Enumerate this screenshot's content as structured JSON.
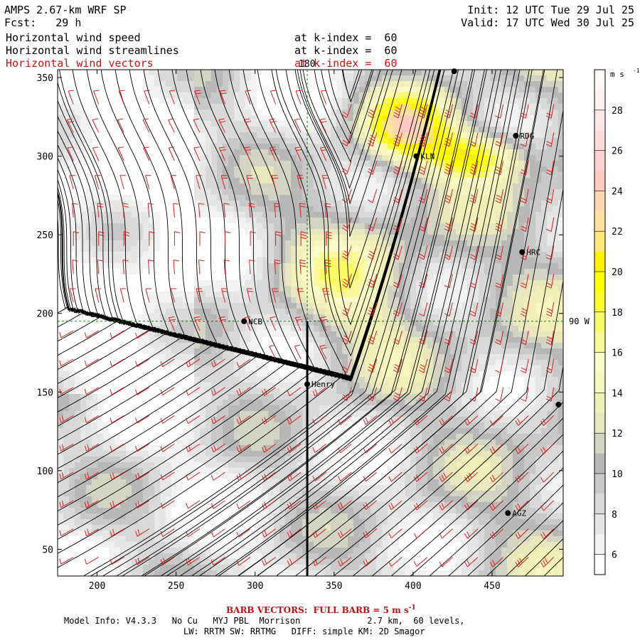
{
  "header": {
    "model": "AMPS 2.67-km WRF SP",
    "fcst_label": "Fcst:",
    "fcst_value": "29 h",
    "init": "Init: 12 UTC Tue 29 Jul 25",
    "valid": "Valid: 17 UTC Wed 30 Jul 25",
    "fields": [
      {
        "name": "Horizontal wind speed",
        "level": "at k-index =  60",
        "color": "#000000"
      },
      {
        "name": "Horizontal wind streamlines",
        "level": "at k-index =  60",
        "color": "#000000"
      },
      {
        "name": "Horizontal wind vectors",
        "level": "at k-index =  60",
        "color": "#d01010"
      }
    ]
  },
  "footer": {
    "barb_note": "BARB VECTORS:  FULL BARB = 5 m s",
    "barb_sup": "-1",
    "model_info_1": "Model Info: V4.3.3   No Cu   MYJ PBL  Morrison             2.7 km,  60 levels,",
    "model_info_2": "LW: RRTM SW: RRTMG   DIFF: simple KM: 2D Smagor"
  },
  "chart_data": {
    "type": "heatmap",
    "title": "Horizontal wind speed",
    "xlim": [
      175,
      495
    ],
    "ylim": [
      33,
      355
    ],
    "x_ticks": [
      200,
      250,
      300,
      350,
      400,
      450
    ],
    "y_ticks": [
      50,
      100,
      150,
      200,
      250,
      300,
      350
    ],
    "gridlines": [
      {
        "axis": "x",
        "value": 333,
        "label": "180"
      },
      {
        "axis": "y",
        "value": 195,
        "label": "90 W"
      }
    ],
    "cross_section": {
      "x": 333,
      "y": [
        33,
        195
      ]
    },
    "stations": [
      {
        "label": "NCB",
        "x": 293,
        "y": 195
      },
      {
        "label": "Henry",
        "x": 333,
        "y": 155
      },
      {
        "label": "KLN",
        "x": 402,
        "y": 300
      },
      {
        "label": "RDG",
        "x": 465,
        "y": 313
      },
      {
        "label": "HRC",
        "x": 469,
        "y": 239
      },
      {
        "label": "AGZ",
        "x": 460,
        "y": 73
      },
      {
        "label": "",
        "x": 426,
        "y": 354
      },
      {
        "label": "",
        "x": 492,
        "y": 142
      }
    ],
    "colorbar": {
      "unit": "m s",
      "unit_sup": "-1",
      "levels": [
        5,
        6,
        7,
        8,
        9,
        10,
        11,
        12,
        13,
        14,
        15,
        16,
        17,
        18,
        19,
        20,
        21,
        22,
        23,
        24,
        25,
        26,
        27,
        28,
        29,
        30
      ],
      "tick_labels": [
        6,
        8,
        10,
        12,
        14,
        16,
        18,
        20,
        22,
        24,
        26,
        28
      ],
      "colors": [
        "#ffffff",
        "#f2f2f2",
        "#e6e6e6",
        "#d9d9d9",
        "#c8c8c8",
        "#b8b8b8",
        "#d4d4c4",
        "#e8e8bc",
        "#f0f0b8",
        "#f6f6c0",
        "#fafac8",
        "#fafa9a",
        "#fafa66",
        "#fcfc30",
        "#ffff00",
        "#fff000",
        "#ffe67a",
        "#ffe0a0",
        "#ffd4b0",
        "#ffc8c0",
        "#ffd0d0",
        "#ffdcdc",
        "#ffe6e6",
        "#fff0f0",
        "#fff6f6"
      ]
    }
  }
}
